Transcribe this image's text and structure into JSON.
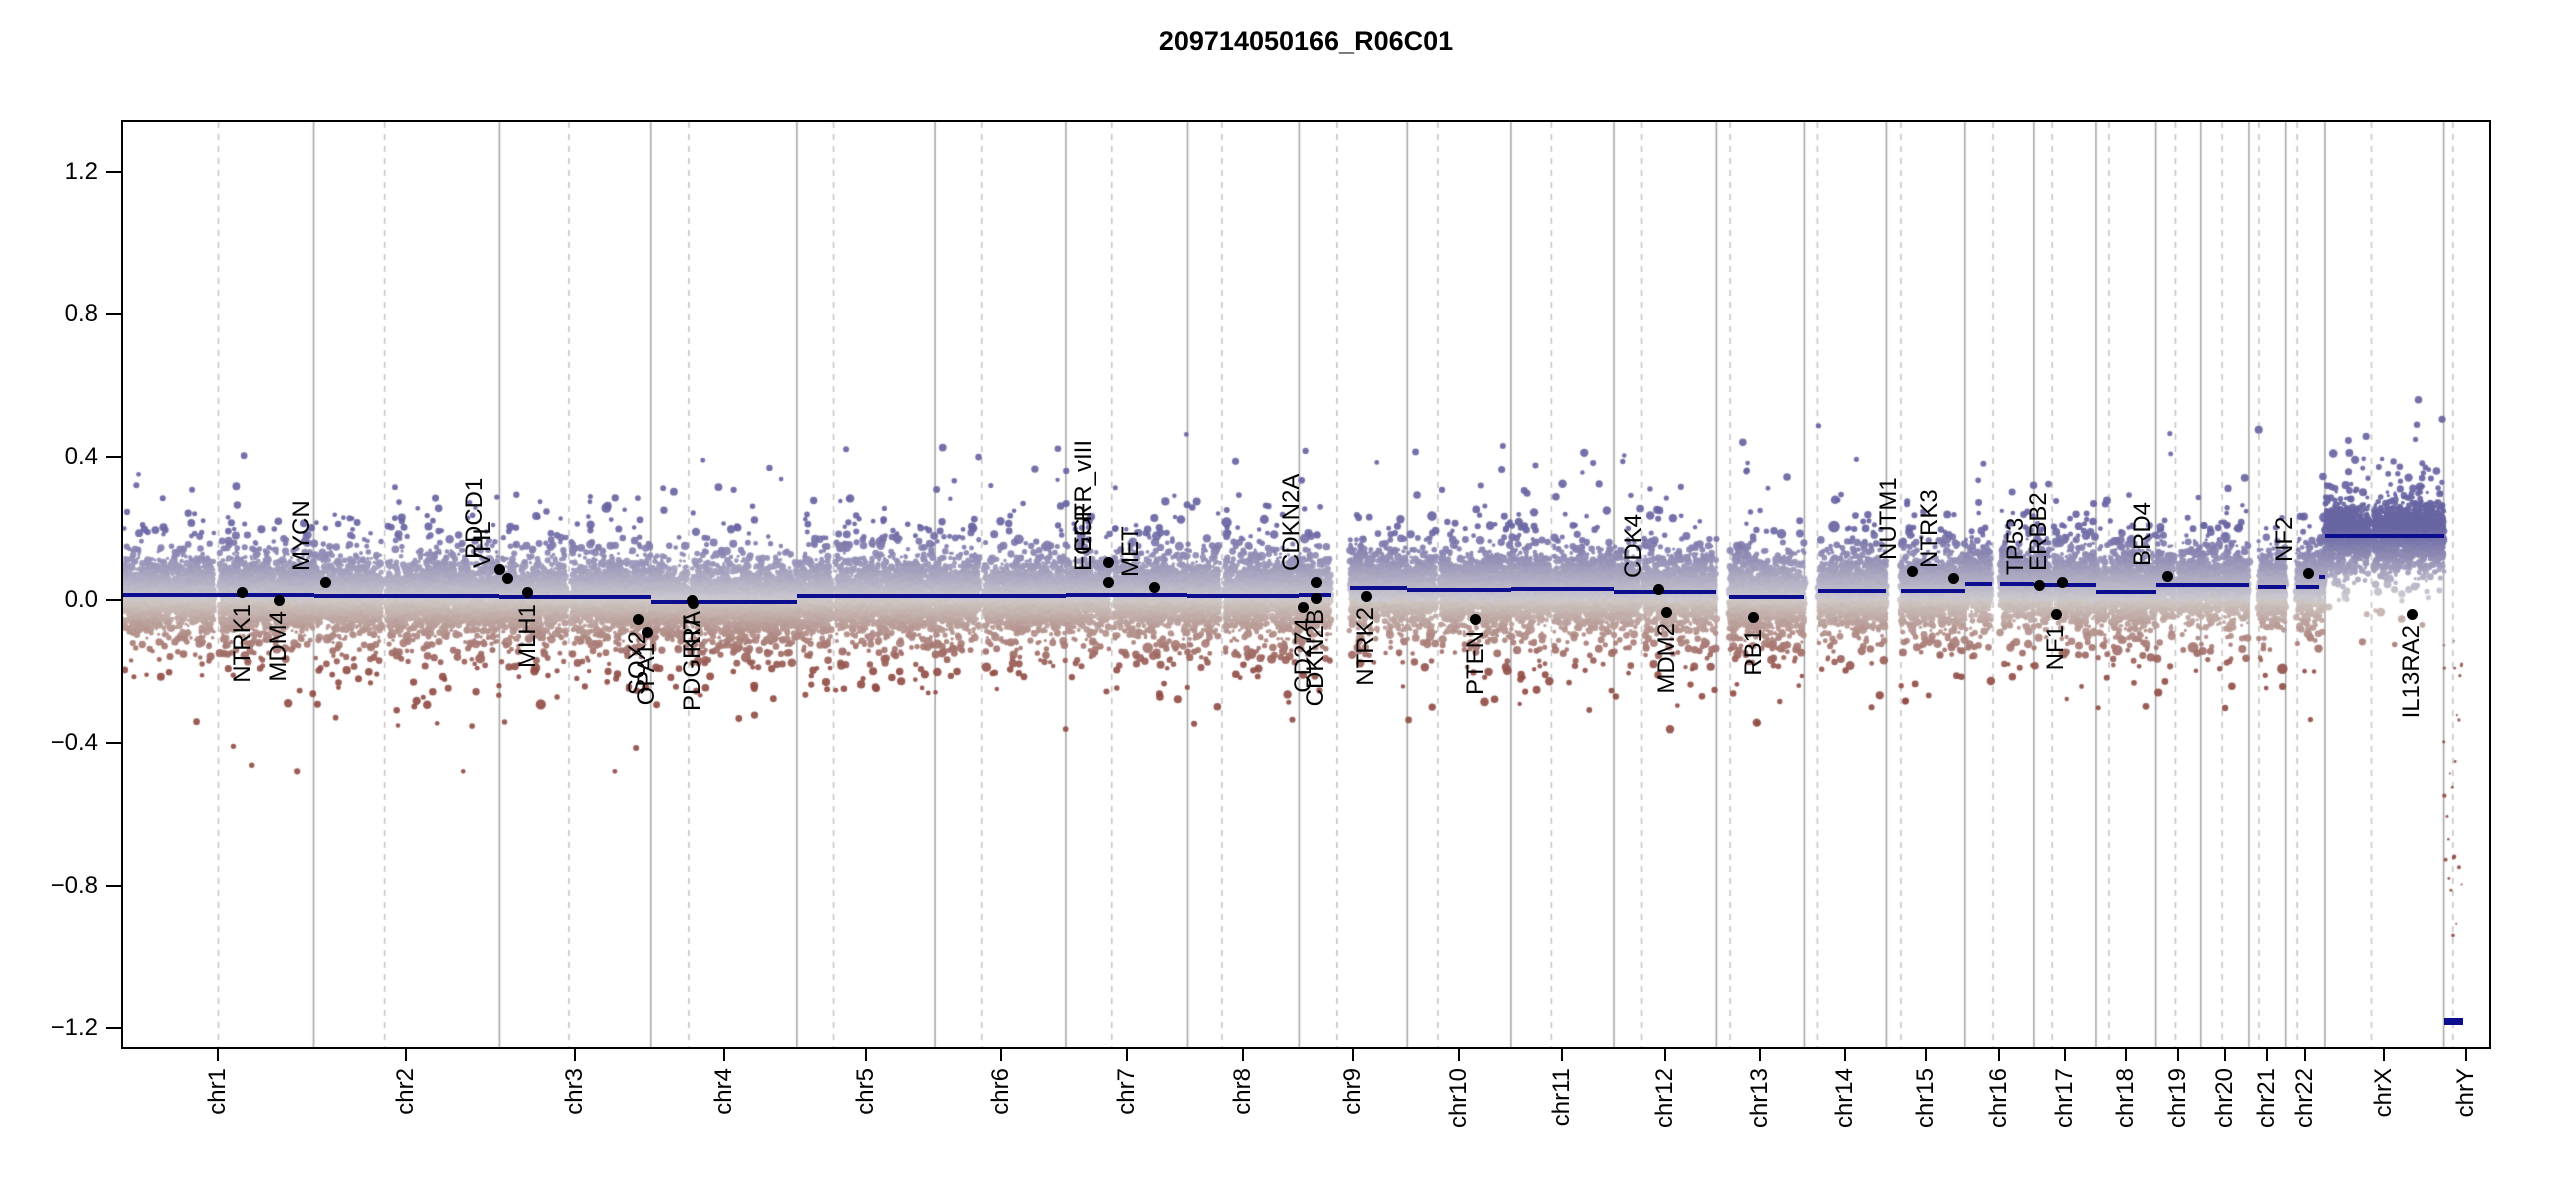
{
  "title": "209714050166_R06C01",
  "y_axis": {
    "tick_labels": [
      "1.2",
      "0.8",
      "0.4",
      "0.0",
      "−0.4",
      "−0.8",
      "−1.2"
    ]
  },
  "colors": {
    "background": "#ffffff",
    "axis": "#000000",
    "segment": "#0d0d8f",
    "gene_marker": "#000000",
    "chromosome_boundary_line": "#a8a8a8",
    "centromere_line": "#c6c6c6",
    "point_gain": "#6865a3",
    "point_neutral": "#c9c5c8",
    "point_loss": "#924e47"
  },
  "chart_data": {
    "type": "scatter",
    "title": "209714050166_R06C01",
    "ylim": [
      -1.25,
      1.34
    ],
    "y_ticks": [
      1.2,
      0.8,
      0.4,
      0.0,
      -0.4,
      -0.8,
      -1.2
    ],
    "grid": "chromosome boundaries solid, centromeres dashed",
    "legend_position": "none",
    "chromosomes": [
      {
        "name": "chr1",
        "length_mb": 249.3,
        "centromere_mb": 125,
        "gaps_mb": [
          [
            119,
            127
          ]
        ],
        "segments": [
          [
            0,
            249.3,
            0.015
          ]
        ]
      },
      {
        "name": "chr2",
        "length_mb": 243.2,
        "centromere_mb": 93,
        "gaps_mb": [
          [
            90,
            96
          ]
        ],
        "segments": [
          [
            0,
            243.2,
            0.01
          ]
        ]
      },
      {
        "name": "chr3",
        "length_mb": 198.0,
        "centromere_mb": 91,
        "gaps_mb": [
          [
            88,
            94
          ]
        ],
        "segments": [
          [
            0,
            198.0,
            0.008
          ]
        ]
      },
      {
        "name": "chr4",
        "length_mb": 191.2,
        "centromere_mb": 50,
        "gaps_mb": [
          [
            47,
            53
          ]
        ],
        "segments": [
          [
            0,
            191.2,
            -0.005
          ]
        ]
      },
      {
        "name": "chr5",
        "length_mb": 180.9,
        "centromere_mb": 48,
        "gaps_mb": [
          [
            45,
            51
          ]
        ],
        "segments": [
          [
            0,
            180.9,
            0.01
          ]
        ]
      },
      {
        "name": "chr6",
        "length_mb": 171.1,
        "centromere_mb": 61,
        "gaps_mb": [
          [
            58,
            64
          ]
        ],
        "segments": [
          [
            0,
            171.1,
            0.012
          ]
        ]
      },
      {
        "name": "chr7",
        "length_mb": 159.1,
        "centromere_mb": 60,
        "gaps_mb": [
          [
            57,
            63
          ]
        ],
        "segments": [
          [
            0,
            159.1,
            0.015
          ]
        ]
      },
      {
        "name": "chr8",
        "length_mb": 146.4,
        "centromere_mb": 45,
        "gaps_mb": [
          [
            42,
            48
          ]
        ],
        "segments": [
          [
            0,
            146.4,
            0.012
          ]
        ]
      },
      {
        "name": "chr9",
        "length_mb": 141.2,
        "centromere_mb": 49,
        "gaps_mb": [
          [
            41,
            66
          ]
        ],
        "segments": [
          [
            0,
            41,
            0.014
          ],
          [
            66,
            141.2,
            0.034
          ]
        ]
      },
      {
        "name": "chr10",
        "length_mb": 135.5,
        "centromere_mb": 40,
        "gaps_mb": [
          [
            38,
            43
          ]
        ],
        "segments": [
          [
            0,
            135.5,
            0.028
          ]
        ]
      },
      {
        "name": "chr11",
        "length_mb": 135.0,
        "centromere_mb": 53,
        "gaps_mb": [
          [
            51,
            56
          ]
        ],
        "segments": [
          [
            0,
            135.0,
            0.03
          ]
        ]
      },
      {
        "name": "chr12",
        "length_mb": 133.9,
        "centromere_mb": 36,
        "gaps_mb": [
          [
            34,
            39
          ]
        ],
        "segments": [
          [
            0,
            133.9,
            0.022
          ]
        ]
      },
      {
        "name": "chr13",
        "length_mb": 115.2,
        "centromere_mb": 18,
        "gaps_mb": [
          [
            0,
            17
          ]
        ],
        "segments": [
          [
            17,
            115.2,
            0.008
          ]
        ]
      },
      {
        "name": "chr14",
        "length_mb": 107.3,
        "centromere_mb": 17,
        "gaps_mb": [
          [
            0,
            18
          ]
        ],
        "segments": [
          [
            18,
            107.3,
            0.025
          ]
        ]
      },
      {
        "name": "chr15",
        "length_mb": 102.5,
        "centromere_mb": 19,
        "gaps_mb": [
          [
            0,
            19
          ]
        ],
        "segments": [
          [
            19,
            102.5,
            0.025
          ]
        ]
      },
      {
        "name": "chr16",
        "length_mb": 90.4,
        "centromere_mb": 37,
        "gaps_mb": [
          [
            35,
            46
          ]
        ],
        "segments": [
          [
            0,
            90.4,
            0.045
          ]
        ]
      },
      {
        "name": "chr17",
        "length_mb": 81.2,
        "centromere_mb": 24,
        "gaps_mb": [
          [
            22,
            26
          ]
        ],
        "segments": [
          [
            0,
            81.2,
            0.042
          ]
        ]
      },
      {
        "name": "chr18",
        "length_mb": 78.1,
        "centromere_mb": 17,
        "gaps_mb": [
          [
            15,
            19
          ]
        ],
        "segments": [
          [
            0,
            78.1,
            0.022
          ]
        ]
      },
      {
        "name": "chr19",
        "length_mb": 59.1,
        "centromere_mb": 26,
        "gaps_mb": [
          [
            24,
            29
          ]
        ],
        "segments": [
          [
            0,
            59.1,
            0.042
          ]
        ]
      },
      {
        "name": "chr20",
        "length_mb": 63.0,
        "centromere_mb": 28,
        "gaps_mb": [
          [
            26,
            30
          ]
        ],
        "segments": [
          [
            0,
            63.0,
            0.042
          ]
        ]
      },
      {
        "name": "chr21",
        "length_mb": 48.1,
        "centromere_mb": 13,
        "gaps_mb": [
          [
            0,
            12
          ]
        ],
        "segments": [
          [
            12,
            48.1,
            0.036
          ]
        ]
      },
      {
        "name": "chr22",
        "length_mb": 51.3,
        "centromere_mb": 15,
        "gaps_mb": [
          [
            0,
            14
          ]
        ],
        "segments": [
          [
            14,
            44,
            0.036
          ],
          [
            44,
            51.3,
            0.065
          ]
        ]
      },
      {
        "name": "chrX",
        "length_mb": 155.3,
        "centromere_mb": 61,
        "gaps_mb": [
          [
            58,
            63
          ]
        ],
        "segments": [
          [
            0,
            155.3,
            0.18
          ]
        ]
      },
      {
        "name": "chrY",
        "length_mb": 59.4,
        "centromere_mb": 12,
        "gaps_mb": [
          [
            25,
            59.4
          ]
        ],
        "segments": [
          [
            0,
            25,
            -1.18
          ]
        ]
      }
    ],
    "genes": [
      {
        "name": "NTRK1",
        "chr": "chr1",
        "position_mb": 156.8,
        "log2_ratio": 0.02,
        "label_side": "below"
      },
      {
        "name": "MDM4",
        "chr": "chr1",
        "position_mb": 204.5,
        "log2_ratio": 0.0,
        "label_side": "below"
      },
      {
        "name": "MYCN",
        "chr": "chr2",
        "position_mb": 16.1,
        "log2_ratio": 0.05,
        "label_side": "above"
      },
      {
        "name": "PDCD1",
        "chr": "chr2",
        "position_mb": 242.8,
        "log2_ratio": 0.085,
        "label_side": "above"
      },
      {
        "name": "VHL",
        "chr": "chr3",
        "position_mb": 10.2,
        "log2_ratio": 0.06,
        "label_side": "above"
      },
      {
        "name": "MLH1",
        "chr": "chr3",
        "position_mb": 37.0,
        "log2_ratio": 0.02,
        "label_side": "below"
      },
      {
        "name": "SOX2",
        "chr": "chr3",
        "position_mb": 181.4,
        "log2_ratio": -0.055,
        "label_side": "below"
      },
      {
        "name": "OPA1",
        "chr": "chr3",
        "position_mb": 193.3,
        "log2_ratio": -0.09,
        "label_side": "below"
      },
      {
        "name": "PDGFRA",
        "chr": "chr4",
        "position_mb": 55.1,
        "log2_ratio": 0.0,
        "label_side": "below"
      },
      {
        "name": "KIT",
        "chr": "chr4",
        "position_mb": 55.5,
        "log2_ratio": -0.01,
        "label_side": "below"
      },
      {
        "name": "EGFR",
        "chr": "chr7",
        "position_mb": 55.1,
        "log2_ratio": 0.05,
        "label_side": "above"
      },
      {
        "name": "EGFR_vIII",
        "chr": "chr7",
        "position_mb": 55.1,
        "log2_ratio": 0.105,
        "label_side": "above"
      },
      {
        "name": "MET",
        "chr": "chr7",
        "position_mb": 116.3,
        "log2_ratio": 0.035,
        "label_side": "above"
      },
      {
        "name": "CD274",
        "chr": "chr9",
        "position_mb": 5.5,
        "log2_ratio": -0.02,
        "label_side": "below"
      },
      {
        "name": "CDKN2A",
        "chr": "chr9",
        "position_mb": 22.0,
        "log2_ratio": 0.05,
        "label_side": "above"
      },
      {
        "name": "CDKN2B",
        "chr": "chr9",
        "position_mb": 22.0,
        "log2_ratio": 0.005,
        "label_side": "below"
      },
      {
        "name": "NTRK2",
        "chr": "chr9",
        "position_mb": 87.3,
        "log2_ratio": 0.01,
        "label_side": "below"
      },
      {
        "name": "PTEN",
        "chr": "chr10",
        "position_mb": 89.7,
        "log2_ratio": -0.055,
        "label_side": "below"
      },
      {
        "name": "CDK4",
        "chr": "chr12",
        "position_mb": 58.1,
        "log2_ratio": 0.03,
        "label_side": "above"
      },
      {
        "name": "MDM2",
        "chr": "chr12",
        "position_mb": 69.2,
        "log2_ratio": -0.035,
        "label_side": "below"
      },
      {
        "name": "RB1",
        "chr": "chr13",
        "position_mb": 48.9,
        "log2_ratio": -0.05,
        "label_side": "below"
      },
      {
        "name": "NUTM1",
        "chr": "chr15",
        "position_mb": 34.6,
        "log2_ratio": 0.08,
        "label_side": "above"
      },
      {
        "name": "NTRK3",
        "chr": "chr15",
        "position_mb": 88.4,
        "log2_ratio": 0.06,
        "label_side": "above"
      },
      {
        "name": "TP53",
        "chr": "chr17",
        "position_mb": 7.6,
        "log2_ratio": 0.04,
        "label_side": "above"
      },
      {
        "name": "NF1",
        "chr": "chr17",
        "position_mb": 29.5,
        "log2_ratio": -0.04,
        "label_side": "below"
      },
      {
        "name": "ERBB2",
        "chr": "chr17",
        "position_mb": 37.9,
        "log2_ratio": 0.05,
        "label_side": "above"
      },
      {
        "name": "BRD4",
        "chr": "chr19",
        "position_mb": 15.4,
        "log2_ratio": 0.065,
        "label_side": "above"
      },
      {
        "name": "NF2",
        "chr": "chr22",
        "position_mb": 30.0,
        "log2_ratio": 0.075,
        "label_side": "above"
      },
      {
        "name": "IL13RA2",
        "chr": "chrX",
        "position_mb": 114.3,
        "log2_ratio": -0.04,
        "label_side": "below"
      }
    ]
  }
}
